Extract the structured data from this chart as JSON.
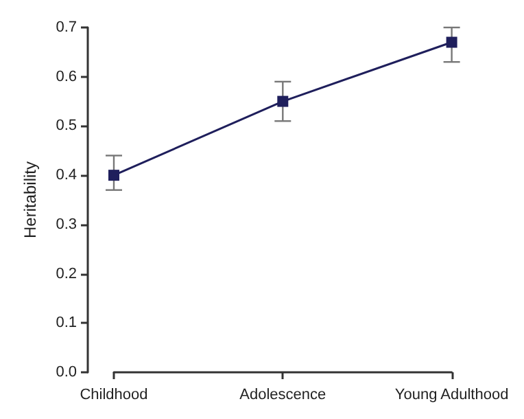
{
  "chart_data": {
    "type": "line",
    "ylabel": "Heritability",
    "categories": [
      "Childhood",
      "Adolescence",
      "Young Adulthood"
    ],
    "series": [
      {
        "color": "#1f1f5c",
        "values": [
          0.4,
          0.55,
          0.67
        ],
        "errors": [
          [
            0.37,
            0.44
          ],
          [
            0.51,
            0.59
          ],
          [
            0.63,
            0.7
          ]
        ]
      }
    ],
    "ylim": [
      0,
      0.7
    ],
    "yticks": [
      {
        "value": 0,
        "label": "0.0"
      },
      0.1,
      0.2,
      0.3,
      0.4,
      0.5,
      0.6,
      0.7
    ],
    "grid": false,
    "marker": "square",
    "line_style": "solid"
  }
}
